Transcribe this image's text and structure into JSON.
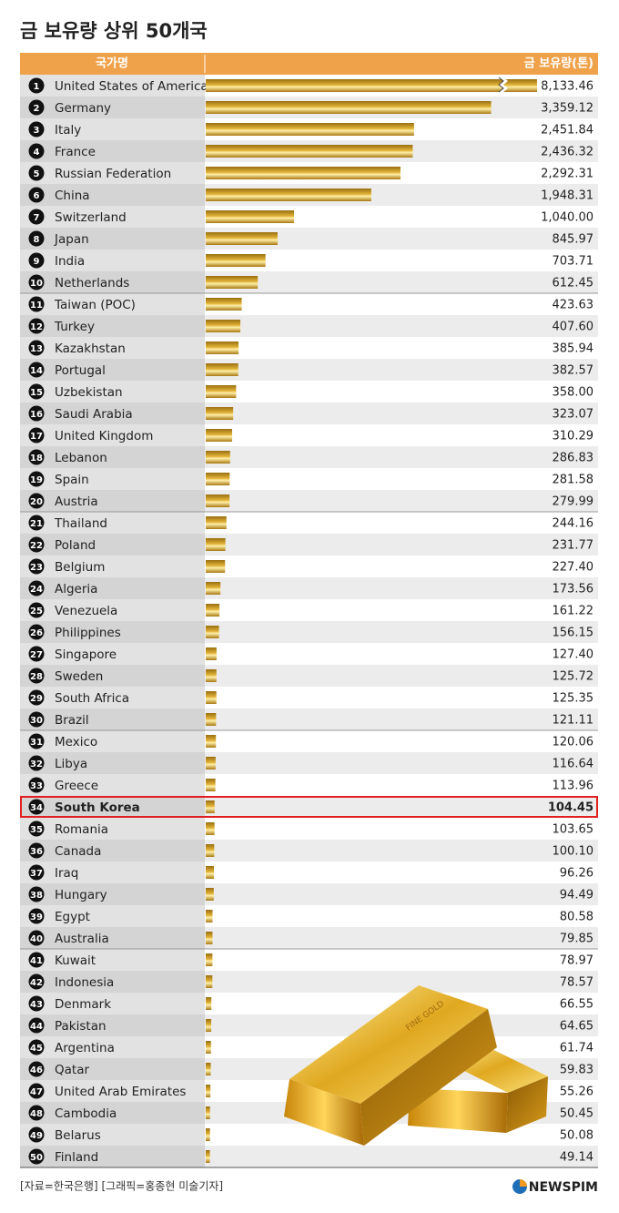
{
  "chart_data": {
    "type": "bar",
    "orientation": "horizontal",
    "title": "금 보유량 상위 50개국",
    "header_category": "국가명",
    "header_value": "금 보유량(톤)",
    "ranks": [
      1,
      2,
      3,
      4,
      5,
      6,
      7,
      8,
      9,
      10,
      11,
      12,
      13,
      14,
      15,
      16,
      17,
      18,
      19,
      20,
      21,
      22,
      23,
      24,
      25,
      26,
      27,
      28,
      29,
      30,
      31,
      32,
      33,
      34,
      35,
      36,
      37,
      38,
      39,
      40,
      41,
      42,
      43,
      44,
      45,
      46,
      47,
      48,
      49,
      50
    ],
    "categories": [
      "United States of America",
      "Germany",
      "Italy",
      "France",
      "Russian Federation",
      "China",
      "Switzerland",
      "Japan",
      "India",
      "Netherlands",
      "Taiwan (POC)",
      "Turkey",
      "Kazakhstan",
      "Portugal",
      "Uzbekistan",
      "Saudi Arabia",
      "United Kingdom",
      "Lebanon",
      "Spain",
      "Austria",
      "Thailand",
      "Poland",
      "Belgium",
      "Algeria",
      "Venezuela",
      "Philippines",
      "Singapore",
      "Sweden",
      "South Africa",
      "Brazil",
      "Mexico",
      "Libya",
      "Greece",
      "South Korea",
      "Romania",
      "Canada",
      "Iraq",
      "Hungary",
      "Egypt",
      "Australia",
      "Kuwait",
      "Indonesia",
      "Denmark",
      "Pakistan",
      "Argentina",
      "Qatar",
      "United Arab Emirates",
      "Cambodia",
      "Belarus",
      "Finland"
    ],
    "values": [
      8133.46,
      3359.12,
      2451.84,
      2436.32,
      2292.31,
      1948.31,
      1040.0,
      845.97,
      703.71,
      612.45,
      423.63,
      407.6,
      385.94,
      382.57,
      358.0,
      323.07,
      310.29,
      286.83,
      281.58,
      279.99,
      244.16,
      231.77,
      227.4,
      173.56,
      161.22,
      156.15,
      127.4,
      125.72,
      125.35,
      121.11,
      120.06,
      116.64,
      113.96,
      104.45,
      103.65,
      100.1,
      96.26,
      94.49,
      80.58,
      79.85,
      78.97,
      78.57,
      66.55,
      64.65,
      61.74,
      59.83,
      55.26,
      50.45,
      50.08,
      49.14
    ],
    "value_labels": [
      "8,133.46",
      "3,359.12",
      "2,451.84",
      "2,436.32",
      "2,292.31",
      "1,948.31",
      "1,040.00",
      "845.97",
      "703.71",
      "612.45",
      "423.63",
      "407.60",
      "385.94",
      "382.57",
      "358.00",
      "323.07",
      "310.29",
      "286.83",
      "281.58",
      "279.99",
      "244.16",
      "231.77",
      "227.40",
      "173.56",
      "161.22",
      "156.15",
      "127.40",
      "125.72",
      "125.35",
      "121.11",
      "120.06",
      "116.64",
      "113.96",
      "104.45",
      "103.65",
      "100.10",
      "96.26",
      "94.49",
      "80.58",
      "79.85",
      "78.97",
      "78.57",
      "66.55",
      "64.65",
      "61.74",
      "59.83",
      "55.26",
      "50.45",
      "50.08",
      "49.14"
    ],
    "color": "#e2b43a",
    "xlim": [
      0,
      3900
    ],
    "highlight": 33,
    "highlight_color": "#e02020",
    "image_label": "FINE GOLD",
    "source": "[자료=한국은행] [그래픽=홍종현 미술기자]",
    "logo": "NEWSPIM"
  }
}
